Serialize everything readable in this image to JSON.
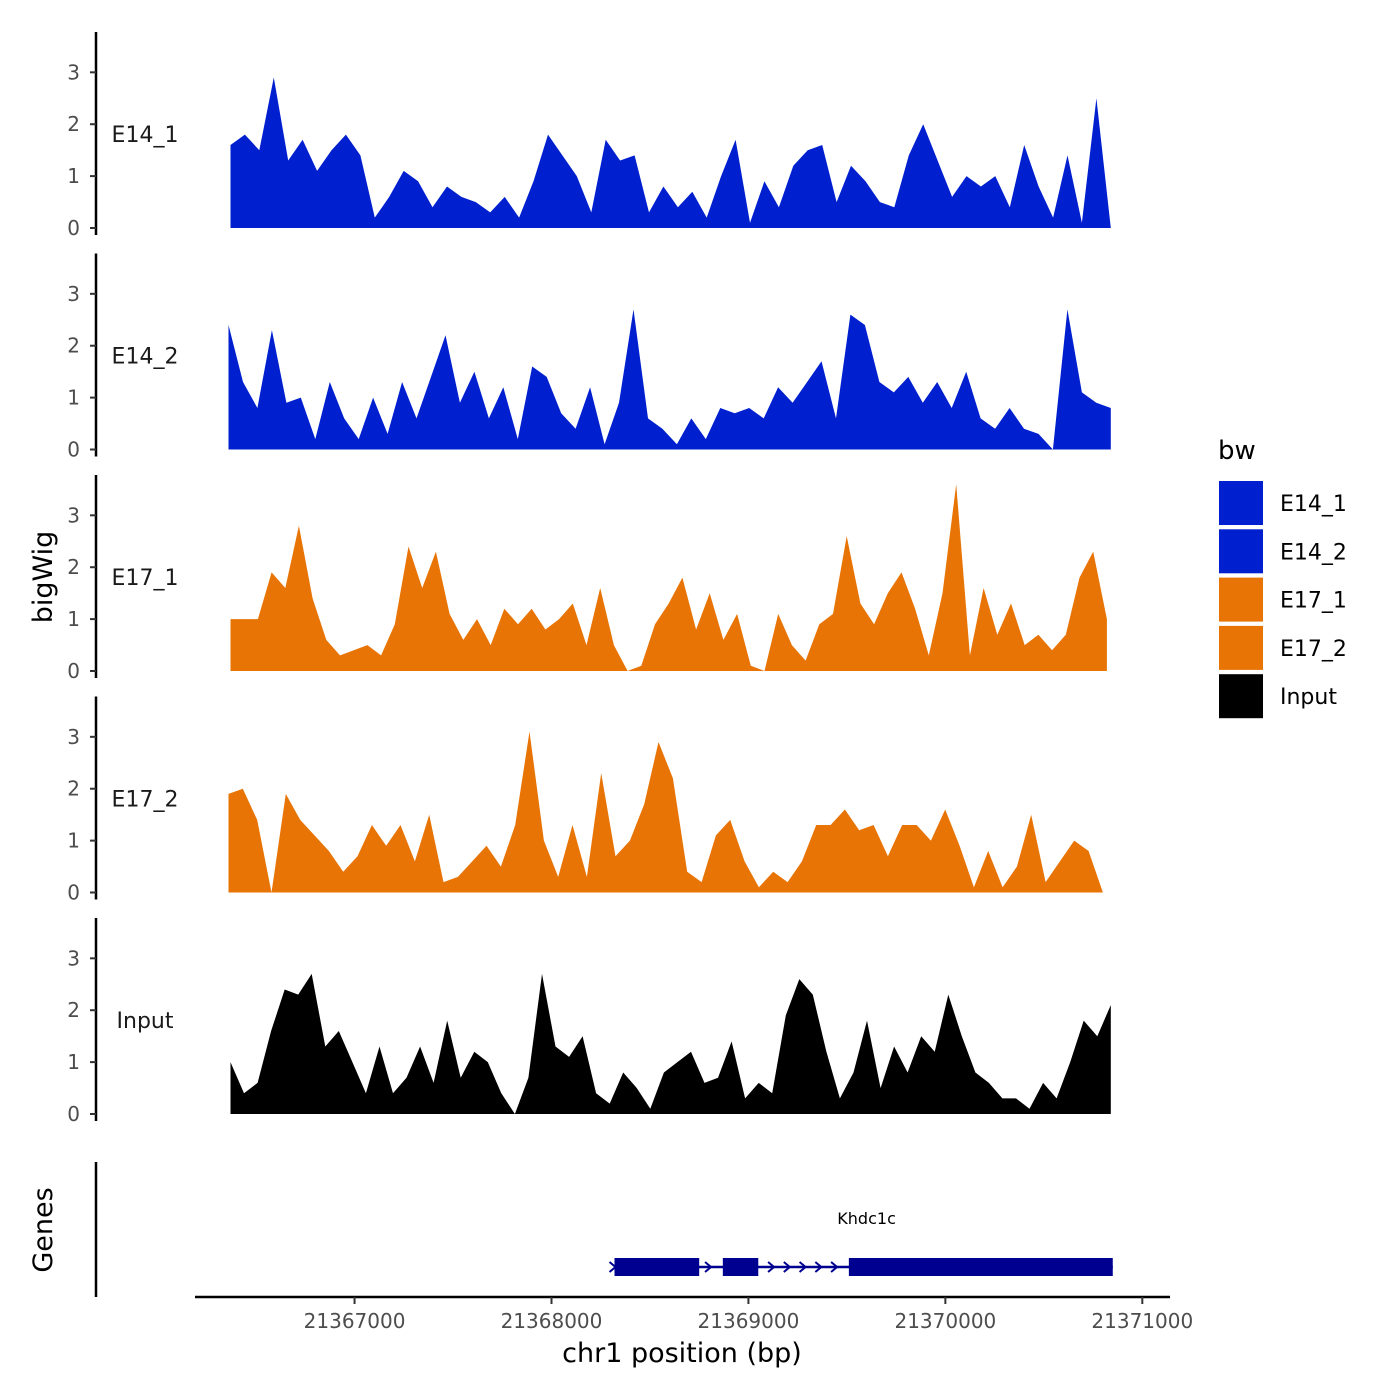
{
  "chart_data": {
    "type": "area",
    "ylabel": "bigWig",
    "xlabel": "chr1 position (bp)",
    "genes_label": "Genes",
    "ylim": [
      0,
      3.7
    ],
    "yticks": [
      "0",
      "1",
      "2",
      "3"
    ],
    "xlim": [
      21366200,
      21371100
    ],
    "xticks": [
      "21367000",
      "21368000",
      "21369000",
      "21370000",
      "21371000"
    ],
    "legend": {
      "title": "bw",
      "entries": [
        {
          "label": "E14_1",
          "color": "#0020d0"
        },
        {
          "label": "E14_2",
          "color": "#0020d0"
        },
        {
          "label": "E17_1",
          "color": "#e87405"
        },
        {
          "label": "E17_2",
          "color": "#e87405"
        },
        {
          "label": "Input",
          "color": "#000000"
        }
      ]
    },
    "series": [
      {
        "name": "E14_1",
        "color": "#0020d0",
        "x_range": [
          21366370,
          21370840
        ],
        "values": [
          1.6,
          1.8,
          1.5,
          2.9,
          1.3,
          1.7,
          1.1,
          1.5,
          1.8,
          1.4,
          0.2,
          0.6,
          1.1,
          0.9,
          0.4,
          0.8,
          0.6,
          0.5,
          0.3,
          0.6,
          0.2,
          0.9,
          1.8,
          1.4,
          1.0,
          0.3,
          1.7,
          1.3,
          1.4,
          0.3,
          0.8,
          0.4,
          0.7,
          0.2,
          1.0,
          1.7,
          0.1,
          0.9,
          0.4,
          1.2,
          1.5,
          1.6,
          0.5,
          1.2,
          0.9,
          0.5,
          0.4,
          1.4,
          2.0,
          1.3,
          0.6,
          1.0,
          0.8,
          1.0,
          0.4,
          1.6,
          0.8,
          0.2,
          1.4,
          0.1,
          2.5,
          0.0
        ]
      },
      {
        "name": "E14_2",
        "color": "#0020d0",
        "x_range": [
          21366360,
          21370840
        ],
        "values": [
          2.4,
          1.3,
          0.8,
          2.3,
          0.9,
          1.0,
          0.2,
          1.3,
          0.6,
          0.2,
          1.0,
          0.3,
          1.3,
          0.6,
          1.4,
          2.2,
          0.9,
          1.5,
          0.6,
          1.2,
          0.2,
          1.6,
          1.4,
          0.7,
          0.4,
          1.2,
          0.1,
          0.9,
          2.7,
          0.6,
          0.4,
          0.1,
          0.6,
          0.2,
          0.8,
          0.7,
          0.8,
          0.6,
          1.2,
          0.9,
          1.3,
          1.7,
          0.6,
          2.6,
          2.4,
          1.3,
          1.1,
          1.4,
          0.9,
          1.3,
          0.8,
          1.5,
          0.6,
          0.4,
          0.8,
          0.4,
          0.3,
          0.0,
          2.7,
          1.1,
          0.9,
          0.8
        ]
      },
      {
        "name": "E17_1",
        "color": "#e87405",
        "x_range": [
          21366370,
          21370820
        ],
        "values": [
          1.0,
          1.0,
          1.0,
          1.9,
          1.6,
          2.8,
          1.4,
          0.6,
          0.3,
          0.4,
          0.5,
          0.3,
          0.9,
          2.4,
          1.6,
          2.3,
          1.1,
          0.6,
          1.0,
          0.5,
          1.2,
          0.9,
          1.2,
          0.8,
          1.0,
          1.3,
          0.5,
          1.6,
          0.5,
          0.0,
          0.1,
          0.9,
          1.3,
          1.8,
          0.8,
          1.5,
          0.6,
          1.1,
          0.1,
          0.0,
          1.1,
          0.5,
          0.2,
          0.9,
          1.1,
          2.6,
          1.3,
          0.9,
          1.5,
          1.9,
          1.2,
          0.3,
          1.5,
          3.6,
          0.3,
          1.6,
          0.7,
          1.3,
          0.5,
          0.7,
          0.4,
          0.7,
          1.8,
          2.3,
          1.0
        ]
      },
      {
        "name": "E17_2",
        "color": "#e87405",
        "x_range": [
          21366360,
          21370800
        ],
        "values": [
          1.9,
          2.0,
          1.4,
          0.0,
          1.9,
          1.4,
          1.1,
          0.8,
          0.4,
          0.7,
          1.3,
          0.9,
          1.3,
          0.6,
          1.5,
          0.2,
          0.3,
          0.6,
          0.9,
          0.5,
          1.3,
          3.1,
          1.0,
          0.3,
          1.3,
          0.3,
          2.3,
          0.7,
          1.0,
          1.7,
          2.9,
          2.2,
          0.4,
          0.2,
          1.1,
          1.4,
          0.6,
          0.1,
          0.4,
          0.2,
          0.6,
          1.3,
          1.3,
          1.6,
          1.2,
          1.3,
          0.7,
          1.3,
          1.3,
          1.0,
          1.6,
          0.9,
          0.1,
          0.8,
          0.1,
          0.5,
          1.5,
          0.2,
          0.6,
          1.0,
          0.8,
          0.0
        ]
      },
      {
        "name": "Input",
        "color": "#000000",
        "x_range": [
          21366370,
          21370840
        ],
        "values": [
          1.0,
          0.4,
          0.6,
          1.6,
          2.4,
          2.3,
          2.7,
          1.3,
          1.6,
          1.0,
          0.4,
          1.3,
          0.4,
          0.7,
          1.3,
          0.6,
          1.8,
          0.7,
          1.2,
          1.0,
          0.4,
          0.0,
          0.7,
          2.7,
          1.3,
          1.1,
          1.5,
          0.4,
          0.2,
          0.8,
          0.5,
          0.1,
          0.8,
          1.0,
          1.2,
          0.6,
          0.7,
          1.4,
          0.3,
          0.6,
          0.4,
          1.9,
          2.6,
          2.3,
          1.2,
          0.3,
          0.8,
          1.8,
          0.5,
          1.3,
          0.8,
          1.5,
          1.2,
          2.3,
          1.5,
          0.8,
          0.6,
          0.3,
          0.3,
          0.1,
          0.6,
          0.3,
          1.0,
          1.8,
          1.5,
          2.1
        ]
      }
    ],
    "gene": {
      "name": "Khdc1c",
      "strand": "+",
      "color": "#000090",
      "start": 21368320,
      "end": 21370850,
      "exons": [
        [
          21368320,
          21368750
        ],
        [
          21368870,
          21369050
        ],
        [
          21369510,
          21370850
        ]
      ],
      "intron_arrows": [
        21369120,
        21369200,
        21369280,
        21369360,
        21369440
      ]
    }
  }
}
